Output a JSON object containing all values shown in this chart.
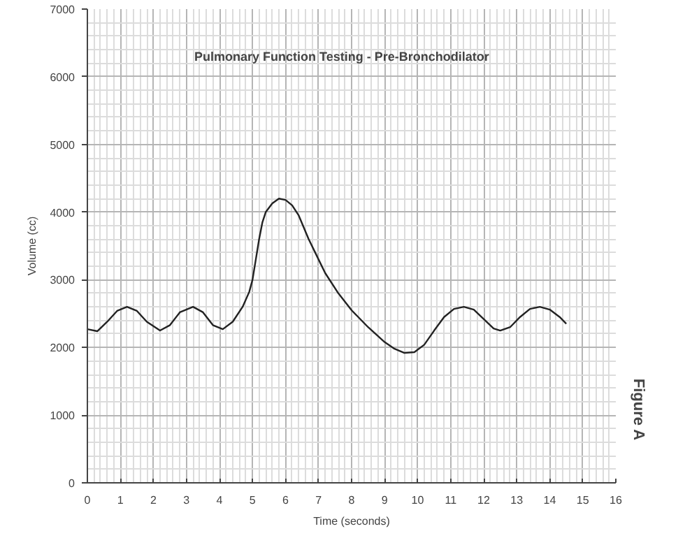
{
  "chart_data": {
    "type": "line",
    "title": "Pulmonary Function Testing - Pre-Bronchodilator",
    "xlabel": "Time (seconds)",
    "ylabel": "Volume (cc)",
    "annotations": [
      "Figure A"
    ],
    "series": [
      {
        "color": "#222222",
        "x": [
          0,
          0.3,
          0.6,
          0.9,
          1.2,
          1.5,
          1.8,
          2.2,
          2.5,
          2.8,
          3.2,
          3.5,
          3.8,
          4.1,
          4.4,
          4.7,
          4.9,
          5.0,
          5.1,
          5.2,
          5.3,
          5.4,
          5.6,
          5.8,
          6.0,
          6.2,
          6.4,
          6.7,
          7.0,
          7.2,
          7.6,
          8.0,
          8.5,
          9.0,
          9.3,
          9.6,
          9.9,
          10.2,
          10.5,
          10.8,
          11.1,
          11.4,
          11.7,
          12.0,
          12.3,
          12.5,
          12.8,
          13.1,
          13.4,
          13.7,
          14.0,
          14.3,
          14.5
        ],
        "values": [
          2270,
          2240,
          2380,
          2540,
          2600,
          2540,
          2380,
          2250,
          2330,
          2520,
          2600,
          2520,
          2330,
          2270,
          2380,
          2600,
          2820,
          3000,
          3300,
          3600,
          3850,
          4000,
          4130,
          4200,
          4180,
          4100,
          3950,
          3600,
          3300,
          3100,
          2800,
          2550,
          2300,
          2080,
          1980,
          1920,
          1930,
          2040,
          2250,
          2450,
          2570,
          2600,
          2560,
          2420,
          2280,
          2250,
          2300,
          2450,
          2570,
          2600,
          2560,
          2450,
          2350
        ]
      }
    ],
    "xlim": [
      0,
      16
    ],
    "xticks": [
      0,
      1,
      2,
      3,
      4,
      5,
      6,
      7,
      8,
      9,
      10,
      11,
      12,
      13,
      14,
      15,
      16
    ],
    "ylim": [
      0,
      7000
    ],
    "yticks": [
      0,
      1000,
      2000,
      3000,
      4000,
      5000,
      6000,
      7000
    ],
    "grid": true,
    "line_style": "solid",
    "marker": "none"
  }
}
